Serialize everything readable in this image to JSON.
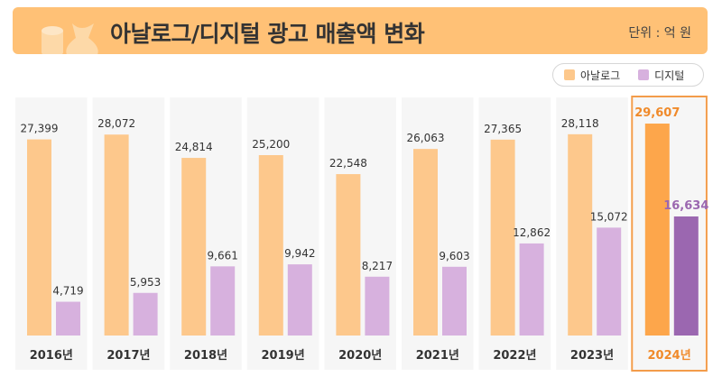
{
  "header": {
    "title": "아날로그/디지털 광고 매출액 변화",
    "unit": "단위 : 억 원"
  },
  "legend": {
    "analog": "아날로그",
    "digital": "디지털"
  },
  "colors": {
    "header_bg": "#ffc176",
    "analog": "#fdc88c",
    "digital": "#d7b1de",
    "analog_highlight": "#fda64b",
    "digital_highlight": "#9b67b0",
    "highlight_label_analog": "#f08a2a",
    "highlight_label_digital": "#9b67b0",
    "highlight_border": "#f39c4a",
    "column_bg": "#f6f6f6",
    "label": "#333333"
  },
  "chart_data": {
    "type": "bar",
    "title": "아날로그/디지털 광고 매출액 변화",
    "ylabel": "단위 : 억 원",
    "xlabel": "",
    "categories": [
      "2016년",
      "2017년",
      "2018년",
      "2019년",
      "2020년",
      "2021년",
      "2022년",
      "2023년",
      "2024년"
    ],
    "series": [
      {
        "name": "아날로그",
        "values": [
          27399,
          28072,
          24814,
          25200,
          22548,
          26063,
          27365,
          28118,
          29607
        ]
      },
      {
        "name": "디지털",
        "values": [
          4719,
          5953,
          9661,
          9942,
          8217,
          9603,
          12862,
          15072,
          16634
        ]
      }
    ],
    "ylim": [
      0,
      31500
    ],
    "grid": false,
    "legend_position": "top-right",
    "highlight_category": "2024년"
  }
}
